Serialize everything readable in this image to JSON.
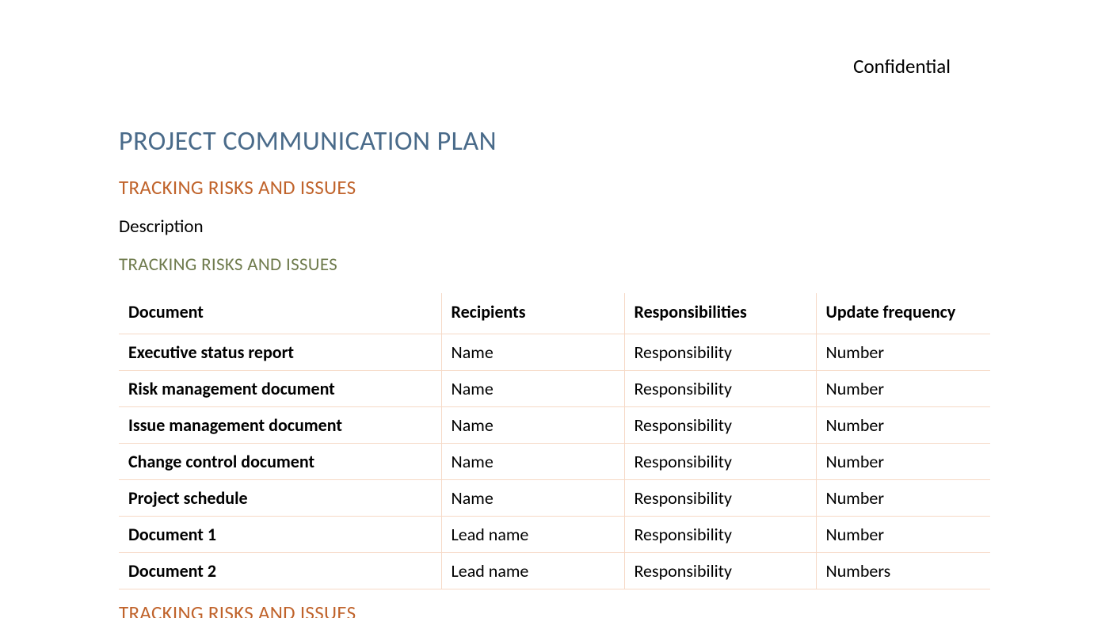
{
  "colors": {
    "title": "#4a6b8a",
    "section_orange": "#c0632b",
    "section_olive": "#6f7b4d",
    "text": "#000000",
    "border": "#f6d9c6",
    "background": "#ffffff"
  },
  "typography": {
    "family": "Calibri",
    "title_size_pt": 26,
    "section_size_pt": 19,
    "body_size_pt": 17,
    "table_size_pt": 17
  },
  "header": {
    "confidential": "Confidential"
  },
  "title": "PROJECT COMMUNICATION PLAN",
  "section1_heading": "TRACKING RISKS AND ISSUES",
  "description": "Description",
  "section2_heading": "TRACKING RISKS AND ISSUES",
  "table": {
    "columns": [
      "Document",
      "Recipients",
      "Responsibilities",
      "Update frequency"
    ],
    "column_widths_pct": [
      37,
      21,
      22,
      20
    ],
    "rows": [
      [
        "Executive status report",
        "Name",
        "Responsibility",
        "Number"
      ],
      [
        "Risk management document",
        "Name",
        "Responsibility",
        "Number"
      ],
      [
        "Issue management document",
        "Name",
        "Responsibility",
        "Number"
      ],
      [
        "Change control document",
        "Name",
        "Responsibility",
        "Number"
      ],
      [
        "Project schedule",
        "Name",
        "Responsibility",
        "Number"
      ],
      [
        "Document 1",
        "Lead name",
        "Responsibility",
        "Number"
      ],
      [
        "Document 2",
        "Lead name",
        "Responsibility",
        "Numbers"
      ]
    ]
  },
  "section3_heading": "TRACKING RISKS AND ISSUES"
}
